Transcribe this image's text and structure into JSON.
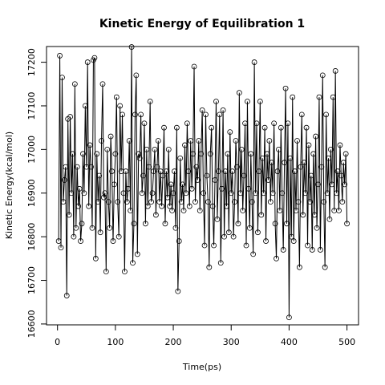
{
  "chart_data": {
    "type": "line",
    "title": "Kinetic Energy of Equilibration 1",
    "xlabel": "Time(ps)",
    "ylabel": "Kinetic Energy(kcal/mol)",
    "xlim": [
      -18.96,
      519.96
    ],
    "ylim": [
      16598,
      17236
    ],
    "xticks": [
      0,
      100,
      200,
      300,
      400,
      500
    ],
    "yticks": [
      16600,
      16700,
      16800,
      16900,
      17000,
      17100,
      17200
    ],
    "series": [
      {
        "color": "#000000",
        "x": [
          2,
          4,
          6,
          8,
          10,
          12,
          14,
          16,
          18,
          20,
          22,
          24,
          26,
          28,
          30,
          32,
          34,
          36,
          38,
          40,
          42,
          44,
          46,
          48,
          50,
          52,
          54,
          56,
          58,
          60,
          62,
          64,
          66,
          68,
          70,
          72,
          74,
          76,
          78,
          80,
          82,
          84,
          86,
          88,
          90,
          92,
          94,
          96,
          98,
          100,
          102,
          104,
          106,
          108,
          110,
          112,
          114,
          116,
          118,
          120,
          122,
          124,
          126,
          128,
          130,
          132,
          134,
          136,
          138,
          140,
          142,
          144,
          146,
          148,
          150,
          152,
          154,
          156,
          158,
          160,
          162,
          164,
          166,
          168,
          170,
          172,
          174,
          176,
          178,
          180,
          182,
          184,
          186,
          188,
          190,
          192,
          194,
          196,
          198,
          200,
          202,
          204,
          206,
          208,
          210,
          212,
          214,
          216,
          218,
          220,
          222,
          224,
          226,
          228,
          230,
          232,
          234,
          236,
          238,
          240,
          242,
          244,
          246,
          248,
          250,
          252,
          254,
          256,
          258,
          260,
          262,
          264,
          266,
          268,
          270,
          272,
          274,
          276,
          278,
          280,
          282,
          284,
          286,
          288,
          290,
          292,
          294,
          296,
          298,
          300,
          302,
          304,
          306,
          308,
          310,
          312,
          314,
          316,
          318,
          320,
          322,
          324,
          326,
          328,
          330,
          332,
          334,
          336,
          338,
          340,
          342,
          344,
          346,
          348,
          350,
          352,
          354,
          356,
          358,
          360,
          362,
          364,
          366,
          368,
          370,
          372,
          374,
          376,
          378,
          380,
          382,
          384,
          386,
          388,
          390,
          392,
          394,
          396,
          398,
          400,
          402,
          404,
          406,
          408,
          410,
          412,
          414,
          416,
          418,
          420,
          422,
          424,
          426,
          428,
          430,
          432,
          434,
          436,
          438,
          440,
          442,
          444,
          446,
          448,
          450,
          452,
          454,
          456,
          458,
          460,
          462,
          464,
          466,
          468,
          470,
          472,
          474,
          476,
          478,
          480,
          482,
          484,
          486,
          488,
          490,
          492,
          494,
          496,
          498,
          500
        ],
        "values": [
          16790,
          17215,
          16775,
          17165,
          16880,
          16930,
          16960,
          16665,
          17070,
          16850,
          17075,
          16900,
          16990,
          16800,
          17150,
          16820,
          16960,
          16870,
          16910,
          16790,
          16830,
          16990,
          16900,
          17100,
          16960,
          17200,
          16870,
          17010,
          16960,
          16820,
          17205,
          17210,
          16750,
          16990,
          16880,
          16940,
          16810,
          17020,
          17150,
          16890,
          16900,
          16720,
          17000,
          16880,
          16820,
          17030,
          16950,
          16790,
          16920,
          16990,
          17120,
          16880,
          16800,
          17100,
          16950,
          17080,
          16900,
          16720,
          16950,
          16880,
          16910,
          17020,
          16860,
          17235,
          16740,
          16830,
          17080,
          17170,
          16760,
          16990,
          16980,
          17080,
          16900,
          16940,
          17060,
          16830,
          17000,
          16870,
          16960,
          17110,
          16880,
          16900,
          16950,
          17000,
          16850,
          16960,
          17020,
          16880,
          16950,
          16870,
          16940,
          17050,
          16830,
          16950,
          16890,
          17000,
          16870,
          16920,
          16860,
          16900,
          16950,
          16820,
          17050,
          16675,
          16790,
          16980,
          16880,
          16920,
          16860,
          17010,
          16900,
          17060,
          16950,
          16870,
          17020,
          16910,
          16990,
          17190,
          16880,
          16960,
          16930,
          17020,
          16860,
          16990,
          17090,
          16900,
          16780,
          17080,
          16940,
          16880,
          16730,
          16990,
          17050,
          16870,
          16780,
          16930,
          17110,
          16840,
          16950,
          17080,
          16740,
          16910,
          17090,
          16800,
          16950,
          16870,
          16990,
          16810,
          17040,
          16900,
          16950,
          16800,
          16880,
          17020,
          16960,
          16830,
          17130,
          16900,
          17000,
          16860,
          16940,
          17060,
          16780,
          17110,
          16910,
          16820,
          16990,
          16880,
          16760,
          17200,
          16900,
          17060,
          16810,
          16950,
          17110,
          16850,
          16980,
          16900,
          17050,
          16790,
          16990,
          16930,
          17020,
          16880,
          16970,
          16900,
          17060,
          16830,
          16750,
          16950,
          17000,
          16860,
          17050,
          16900,
          16770,
          16970,
          17140,
          16830,
          17060,
          16615,
          16980,
          16800,
          17120,
          16790,
          16950,
          16860,
          17020,
          16880,
          16730,
          16960,
          17080,
          16850,
          16970,
          16900,
          17050,
          16780,
          17010,
          16880,
          16940,
          16770,
          16990,
          16850,
          17030,
          16820,
          16920,
          17120,
          16770,
          16960,
          17170,
          16880,
          16730,
          17080,
          16900,
          16980,
          16840,
          17000,
          16920,
          17120,
          16860,
          17180,
          16900,
          16950,
          16860,
          17010,
          16940,
          16880,
          16970,
          16920,
          16990,
          16830
        ]
      }
    ]
  }
}
